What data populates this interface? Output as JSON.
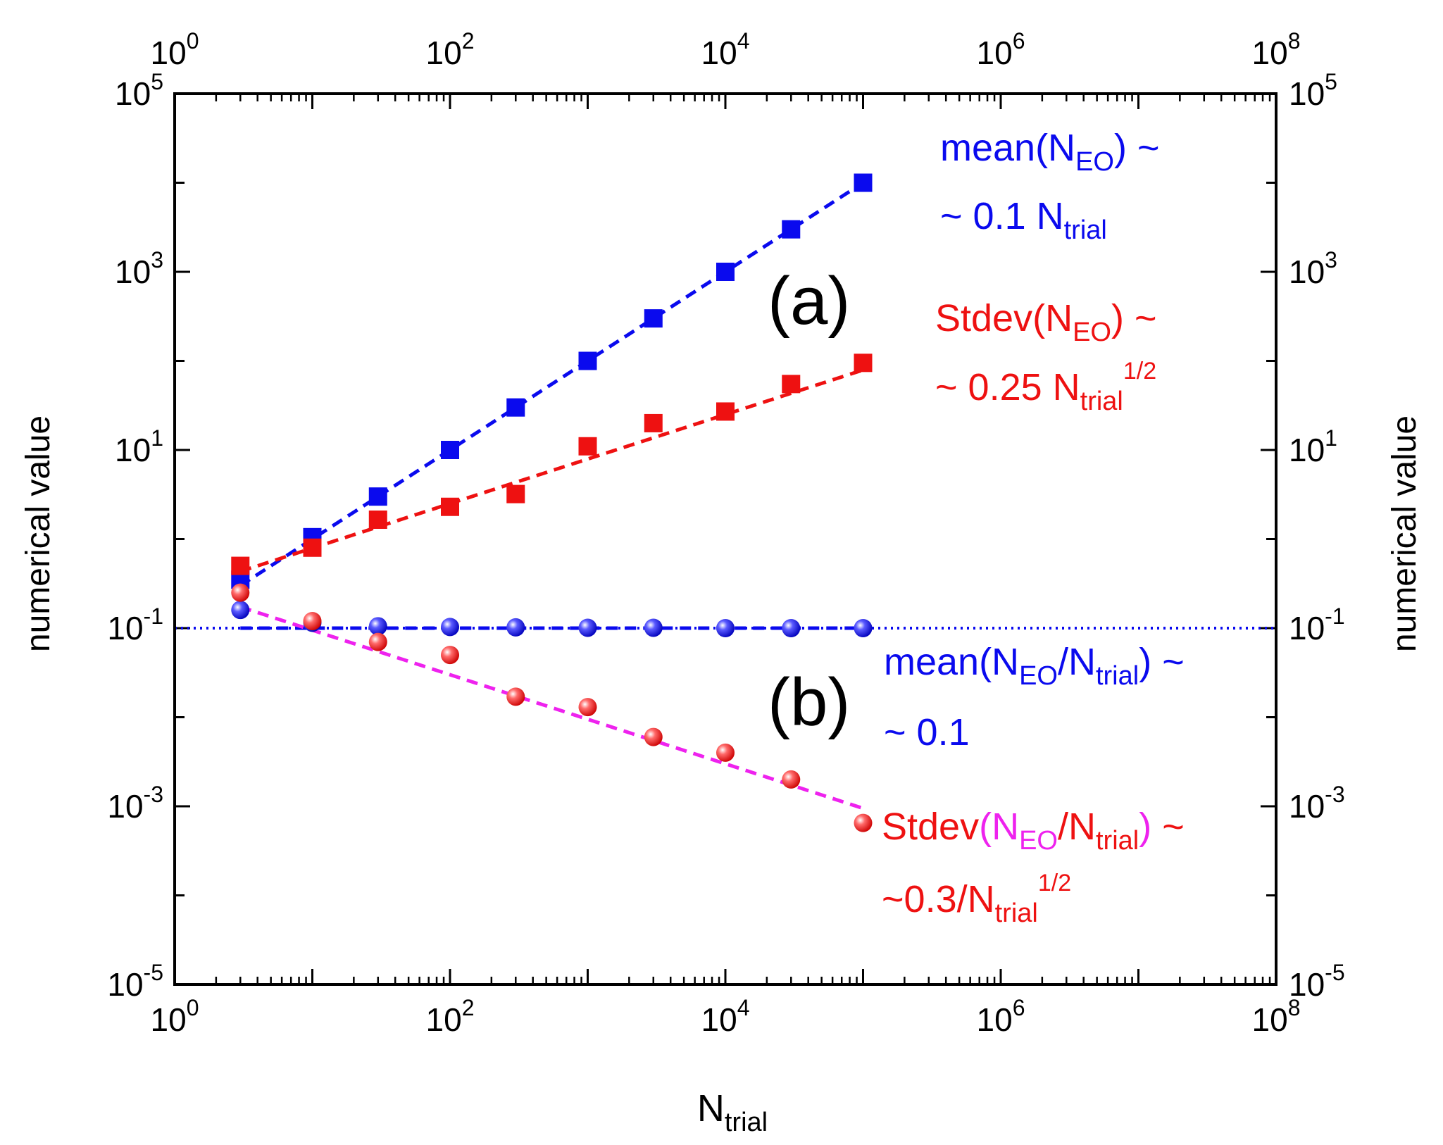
{
  "colors": {
    "blue": "#0a0aee",
    "red": "#ee1111",
    "magenta": "#ee22ee",
    "axis": "#000000"
  },
  "chart_data": {
    "type": "scatter",
    "xscale": "log",
    "yscale": "log",
    "xlim": [
      1,
      100000000
    ],
    "ylim": [
      1e-05,
      100000
    ],
    "xlabel": "N",
    "xlabel_sub": "trial",
    "ylabel_left": "numerical value",
    "ylabel_right": "numerical value",
    "x_ticks": [
      {
        "base": "10",
        "exp": "0"
      },
      {
        "base": "10",
        "exp": "2"
      },
      {
        "base": "10",
        "exp": "4"
      },
      {
        "base": "10",
        "exp": "6"
      },
      {
        "base": "10",
        "exp": "8"
      }
    ],
    "y_ticks": [
      {
        "base": "10",
        "exp": "-5"
      },
      {
        "base": "10",
        "exp": "-3"
      },
      {
        "base": "10",
        "exp": "-1"
      },
      {
        "base": "10",
        "exp": "1"
      },
      {
        "base": "10",
        "exp": "3"
      },
      {
        "base": "10",
        "exp": "5"
      }
    ],
    "x": [
      3,
      10,
      30,
      100,
      300,
      1000,
      3000,
      10000,
      30000,
      100000
    ],
    "series": [
      {
        "key": "mean_a",
        "marker": "square",
        "color": "#0a0aee",
        "values": [
          0.35,
          1.05,
          3.0,
          10.0,
          30.0,
          100.0,
          300.0,
          1000.0,
          3000.0,
          10000.0
        ],
        "fit": {
          "type": "dashed",
          "color": "#0a0aee",
          "coef": 0.1,
          "power": 1.0,
          "from": 3,
          "to": 100000
        }
      },
      {
        "key": "stdev_a",
        "marker": "square",
        "color": "#ee1111",
        "values": [
          0.5,
          0.8,
          1.65,
          2.3,
          3.2,
          11.0,
          20.0,
          27.0,
          55.0,
          95.0
        ],
        "fit": {
          "type": "dashed",
          "color": "#ee1111",
          "coef": 0.25,
          "power": 0.5,
          "from": 3,
          "to": 100000
        }
      },
      {
        "key": "mean_b",
        "marker": "sphere",
        "color": "#0a0aee",
        "values": [
          0.16,
          0.115,
          0.105,
          0.103,
          0.102,
          0.101,
          0.101,
          0.1,
          0.1,
          0.1
        ],
        "fit": {
          "type": "dashed",
          "color": "#0a0aee",
          "coef": 0.1,
          "power": 0.0,
          "from": 3,
          "to": 100000
        }
      },
      {
        "key": "stdev_b",
        "marker": "sphere",
        "color": "#ee1111",
        "values": [
          0.25,
          0.12,
          0.07,
          0.05,
          0.017,
          0.013,
          0.006,
          0.004,
          0.002,
          0.00065
        ],
        "fit": {
          "type": "dashed",
          "color": "#ee22ee",
          "coef": 0.3,
          "power": -0.5,
          "from": 3,
          "to": 100000
        }
      }
    ],
    "reference_line": {
      "y": 0.1,
      "style": "dotted",
      "color": "#0a0aee"
    },
    "panel_labels": [
      "(a)",
      "(b)"
    ],
    "annotations": {
      "mean_a_1": {
        "p1": "mean(N",
        "sub": "EO",
        "p2": ") ~"
      },
      "mean_a_2": {
        "p1": "~ 0.1 N",
        "sub": "trial"
      },
      "stdev_a_1": {
        "p1": "Stdev(N",
        "sub": "EO",
        "p2": ") ~"
      },
      "stdev_a_2": {
        "p1": "~ 0.25 N",
        "sub": "trial",
        "sup": "1/2"
      },
      "mean_b_1": {
        "p1": "mean(N",
        "sub1": "EO",
        "p2": "/N",
        "sub2": "trial",
        "p3": ") ~"
      },
      "mean_b_2": {
        "p1": "~ 0.1"
      },
      "stdev_b_1": {
        "p1": "Stdev",
        "p2": "(N",
        "sub1": "EO",
        "p3": "/N",
        "sub2": "trial",
        "p4": ")",
        "p5": " ~"
      },
      "stdev_b_2": {
        "p1": "~0.3/N",
        "sub": "trial",
        "sup": "1/2"
      }
    }
  }
}
